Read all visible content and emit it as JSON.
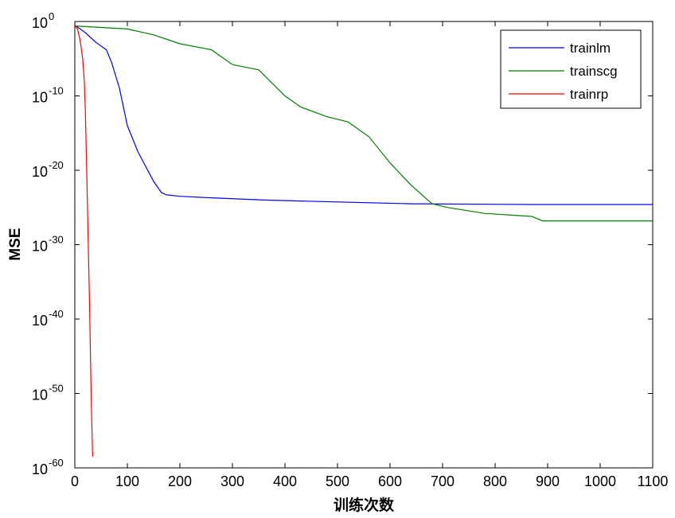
{
  "chart_data": {
    "type": "line",
    "title": "",
    "xlabel": "训练次数",
    "ylabel": "MSE",
    "y_scale": "log",
    "xlim": [
      0,
      1100
    ],
    "ylim_exponent": [
      -60,
      0
    ],
    "x_ticks": [
      "0",
      "100",
      "200",
      "300",
      "400",
      "500",
      "600",
      "700",
      "800",
      "900",
      "1000",
      "1100"
    ],
    "y_ticks": [
      {
        "base": "10",
        "exp": "0"
      },
      {
        "base": "10",
        "exp": "-10"
      },
      {
        "base": "10",
        "exp": "-20"
      },
      {
        "base": "10",
        "exp": "-30"
      },
      {
        "base": "10",
        "exp": "-40"
      },
      {
        "base": "10",
        "exp": "-50"
      },
      {
        "base": "10",
        "exp": "-60"
      }
    ],
    "grid": false,
    "legend_position": "top-right",
    "series": [
      {
        "name": "trainlm",
        "color": "#0000ff",
        "x": [
          0,
          20,
          40,
          60,
          70,
          85,
          100,
          120,
          150,
          165,
          175,
          200,
          260,
          360,
          470,
          640,
          870,
          1100
        ],
        "y_exponent": [
          -0.5,
          -1.5,
          -2.8,
          -3.8,
          -5.5,
          -9,
          -14,
          -17.5,
          -21.5,
          -23,
          -23.3,
          -23.5,
          -23.7,
          -24,
          -24.2,
          -24.5,
          -24.6,
          -24.6
        ]
      },
      {
        "name": "trainscg",
        "color": "#008000",
        "x": [
          0,
          50,
          100,
          150,
          200,
          260,
          300,
          350,
          400,
          430,
          480,
          520,
          560,
          600,
          640,
          680,
          710,
          780,
          870,
          890,
          1100
        ],
        "y_exponent": [
          -0.6,
          -0.8,
          -1.0,
          -1.8,
          -3.0,
          -3.8,
          -5.8,
          -6.5,
          -10.0,
          -11.5,
          -12.8,
          -13.5,
          -15.5,
          -19.0,
          -22.0,
          -24.5,
          -25.0,
          -25.8,
          -26.2,
          -26.8,
          -26.8
        ]
      },
      {
        "name": "trainrp",
        "color": "#ff0000",
        "x": [
          0,
          5,
          10,
          15,
          18,
          20,
          22,
          25,
          28,
          30,
          32,
          34
        ],
        "y_exponent": [
          -0.5,
          -1.0,
          -2.5,
          -5.0,
          -8.0,
          -12.0,
          -18.0,
          -28.0,
          -38.0,
          -46.0,
          -53.0,
          -58.5
        ]
      }
    ]
  }
}
